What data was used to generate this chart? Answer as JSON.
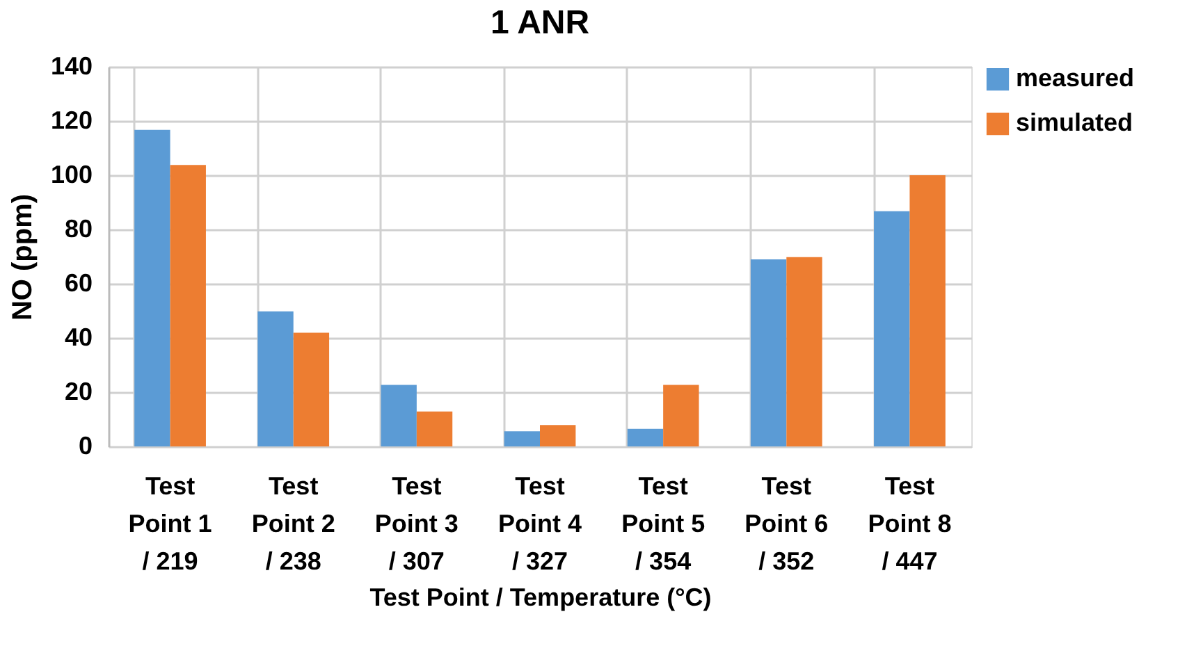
{
  "chart_data": {
    "type": "bar",
    "title": "1 ANR",
    "xlabel": "Test Point / Temperature (°C)",
    "ylabel": "NO (ppm)",
    "categories": [
      "Test Point 1 / 219",
      "Test Point 2 / 238",
      "Test Point 3 / 307",
      "Test Point 4 / 327",
      "Test Point 5 / 354",
      "Test Point 6 / 352",
      "Test Point 8 / 447"
    ],
    "series": [
      {
        "name": "measured",
        "color": "#5b9bd5",
        "values": [
          116.7,
          49.8,
          22.7,
          5.6,
          6.5,
          69,
          86.7
        ]
      },
      {
        "name": "simulated",
        "color": "#ed7d31",
        "values": [
          103.8,
          41.9,
          12.9,
          7.9,
          22.7,
          69.8,
          100
        ]
      }
    ],
    "ylim": [
      0,
      140
    ],
    "yticks": [
      0,
      20,
      40,
      60,
      80,
      100,
      120,
      140
    ],
    "grid": true,
    "legend": "right"
  }
}
